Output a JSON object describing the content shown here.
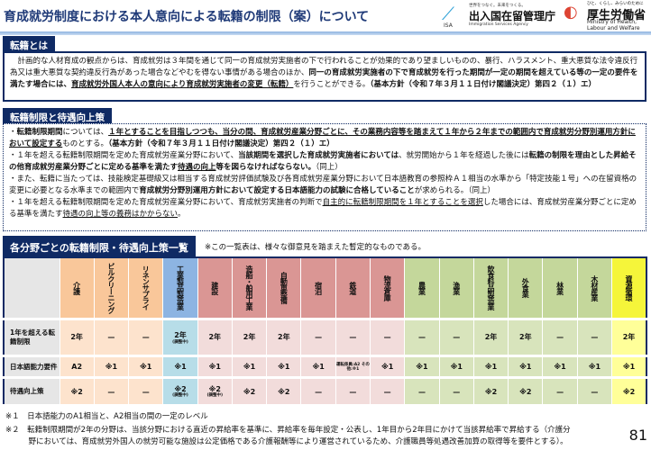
{
  "header": {
    "title": "育成就労制度における本人意向による転籍の制限（案）について",
    "logo_isa": {
      "tagline": "世界をつなぐ。未来をつくる。",
      "name": "出入国在留管理庁",
      "en": "Immigration Services Agency",
      "abbr": "ISA"
    },
    "logo_mhlw": {
      "tagline": "ひと、くらし、みらいのために",
      "name": "厚生労働省",
      "en": "Ministry of Health, Labour and Welfare"
    }
  },
  "section1": {
    "tab": "転籍とは",
    "text_a": "　計画的な人材育成の観点からは、育成就労は３年間を通じて同一の育成就労実施者の下で行われることが効果的であり望ましいものの、暴行、ハラスメント、重大悪質な法令違反行為又は重大悪質な契約違反行為があった場合などやむを得ない事情がある場合のほか、",
    "text_b": "同一の育成就労実施者の下で育成就労を行った期間が一定の期間を超えている等の一定の要件を満たす場合には、",
    "text_c": "育成就労外国人本人の意向により育成就労実施者の変更（転籍）",
    "text_d": "を行うことができる。",
    "text_e": "（基本方針（令和７年３月１１日付け閣議決定）第四２（１）エ）"
  },
  "section2": {
    "tab": "転籍制限と待遇向上策",
    "b1": [
      "・",
      "転籍制限期間",
      "については、",
      "１年とすることを目指しつつも、当分の間、育成就労産業分野ごとに、その業務内容等を踏まえて１年から２年までの範囲内で育成就労分野別運用方針において設定する",
      "ものとする。",
      "（基本方針（令和７年３月１１日付け閣議決定）第四２（１）エ）"
    ],
    "b2": [
      "・１年を超える転籍制限期間を定めた育成就労産業分野において、",
      "当該期間を選択した育成就労実施者においては",
      "、就労開始から１年を経過した後には",
      "転籍の制限を理由とした昇給その他育成就労産業分野ごとに定める基準を満たす",
      "待遇の向上",
      "等を図らなければならない。",
      "（同上）"
    ],
    "b3": [
      "・また、転籍に当たっては、技能検定基礎級又は相当する育成就労評価試験及び各育成就労産業分野において日本語教育の参照枠Ａ１相当の水準から「特定技能１号」への在留資格の変更に必要となる水準までの範囲内で",
      "育成就労分野別運用方針において設定する日本語能力の試験に合格していること",
      "が求められる。（同上）"
    ],
    "b4": [
      "・１年を超える転籍制限期間を定めた育成就労産業分野において、育成就労実施者の判断で",
      "自主的に転籍制限期間を１年とすることを選択",
      "した場合には、育成就労産業分野ごとに定める基準を満たす",
      "待遇の向上等の義務はかからない",
      "。"
    ]
  },
  "section3": {
    "tab": "各分野ごとの転籍制限・待遇向上策一覧",
    "note": "※この一覧表は、様々な御意見を踏まえた暫定的なものである。"
  },
  "colors": {
    "orange_head": "#f9c79a",
    "orange_body": "#fde3cd",
    "blue_head": "#8db4e2",
    "blue_body": "#b7dde8",
    "red_head": "#da9694",
    "red_body": "#f2dcdb",
    "green_head": "#c4d79b",
    "green_body": "#d8e4bc",
    "yellow_head": "#f5f53a",
    "yellow_body": "#ffff99",
    "navy": "#0f2a64"
  },
  "table": {
    "columns": [
      {
        "name": "介護",
        "group": "orange"
      },
      {
        "name": "ビルクリーニング",
        "group": "orange"
      },
      {
        "name": "リネンサプライ",
        "group": "orange"
      },
      {
        "name": "工業製品製造業",
        "group": "blue"
      },
      {
        "name": "建設",
        "group": "red"
      },
      {
        "name": "造船・舶用工業",
        "group": "red"
      },
      {
        "name": "自動車整備",
        "group": "red"
      },
      {
        "name": "宿泊",
        "group": "red"
      },
      {
        "name": "鉄道",
        "group": "red"
      },
      {
        "name": "物流倉庫",
        "group": "red"
      },
      {
        "name": "農業",
        "group": "green"
      },
      {
        "name": "漁業",
        "group": "green"
      },
      {
        "name": "飲食料品製造業",
        "group": "green"
      },
      {
        "name": "外食業",
        "group": "green"
      },
      {
        "name": "林業",
        "group": "green"
      },
      {
        "name": "木材産業",
        "group": "green"
      },
      {
        "name": "資源循環",
        "group": "yellow"
      }
    ],
    "rows": [
      {
        "label": "1年を超える転籍制限",
        "cells": [
          [
            "2年",
            ""
          ],
          [
            "—",
            ""
          ],
          [
            "—",
            ""
          ],
          [
            "2年",
            "(調整中)"
          ],
          [
            "2年",
            ""
          ],
          [
            "2年",
            ""
          ],
          [
            "2年",
            ""
          ],
          [
            "—",
            ""
          ],
          [
            "—",
            ""
          ],
          [
            "—",
            ""
          ],
          [
            "—",
            ""
          ],
          [
            "—",
            ""
          ],
          [
            "2年",
            ""
          ],
          [
            "2年",
            ""
          ],
          [
            "—",
            ""
          ],
          [
            "—",
            ""
          ],
          [
            "2年",
            ""
          ]
        ]
      },
      {
        "label": "日本語能力要件",
        "cells": [
          [
            "A2",
            ""
          ],
          [
            "※1",
            ""
          ],
          [
            "※1",
            ""
          ],
          [
            "※1",
            ""
          ],
          [
            "※1",
            ""
          ],
          [
            "※1",
            ""
          ],
          [
            "※1",
            ""
          ],
          [
            "※1",
            ""
          ],
          [
            "",
            "運転係員:A2 その他:※1"
          ],
          [
            "※1",
            ""
          ],
          [
            "※1",
            ""
          ],
          [
            "※1",
            ""
          ],
          [
            "※1",
            ""
          ],
          [
            "※1",
            ""
          ],
          [
            "※1",
            ""
          ],
          [
            "※1",
            ""
          ],
          [
            "※1",
            ""
          ]
        ]
      },
      {
        "label": "待遇向上策",
        "cells": [
          [
            "※2",
            ""
          ],
          [
            "—",
            ""
          ],
          [
            "—",
            ""
          ],
          [
            "※2",
            "(調整中)"
          ],
          [
            "※2",
            "(調整中)"
          ],
          [
            "※2",
            ""
          ],
          [
            "※2",
            ""
          ],
          [
            "—",
            ""
          ],
          [
            "—",
            ""
          ],
          [
            "—",
            ""
          ],
          [
            "—",
            ""
          ],
          [
            "—",
            ""
          ],
          [
            "※2",
            ""
          ],
          [
            "※2",
            ""
          ],
          [
            "—",
            ""
          ],
          [
            "—",
            ""
          ],
          [
            "※2",
            ""
          ]
        ]
      }
    ]
  },
  "footnotes": [
    "※１　日本語能力のA1相当と、A2相当の間の一定のレベル",
    "※２　転籍制限期間が2年の分野は、当該分野における直近の昇給率を基準に、昇給率を毎年設定・公表し、1年目から2年目にかけて当該昇給率で昇給する（介護分",
    "　　　野においては、育成就労外国人の就労可能な施設は公定価格である介護報酬等により運営されているため、介護職員等処遇改善加算の取得等を要件とする）。"
  ],
  "page_number": "81"
}
